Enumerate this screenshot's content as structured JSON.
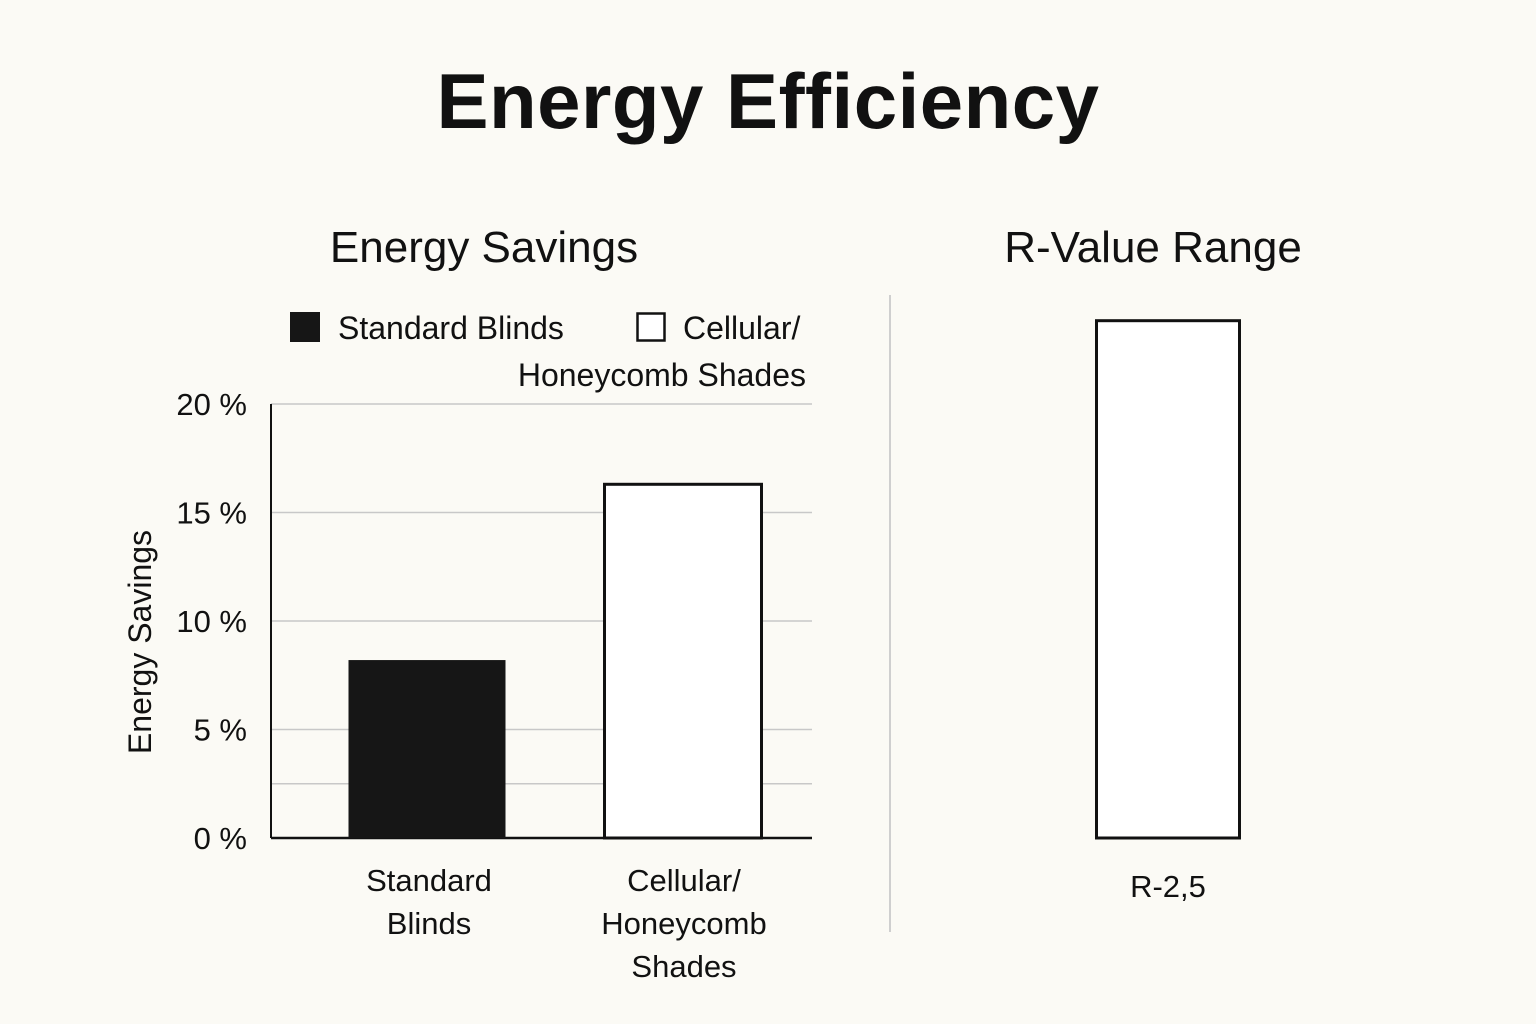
{
  "page": {
    "title": "Energy Efficiency"
  },
  "colors": {
    "background": "#fbfaf5",
    "ink": "#111111",
    "grid": "#c8c8c8",
    "divider": "#cfcfcf",
    "standard_fill": "#161616",
    "cellular_fill": "#ffffff"
  },
  "chart_data": [
    {
      "type": "bar",
      "title": "Energy Savings",
      "ylabel": "Energy Savings",
      "xlabel": "",
      "ylim": [
        0,
        20
      ],
      "yticks": [
        {
          "value": 0,
          "label": "0 %"
        },
        {
          "value": 5,
          "label": "5 %"
        },
        {
          "value": 10,
          "label": "10 %"
        },
        {
          "value": 15,
          "label": "15 %"
        },
        {
          "value": 20,
          "label": "20 %"
        }
      ],
      "gridlines": [
        5,
        10,
        15,
        20,
        2.5
      ],
      "grid": true,
      "legend_position": "top",
      "legend": [
        {
          "lines": [
            "Standard Blinds"
          ],
          "swatch": "filled"
        },
        {
          "lines": [
            "Cellular/",
            "Honeycomb Shades"
          ],
          "swatch": "outline"
        }
      ],
      "categories": [
        {
          "lines": [
            "Standard",
            "Blinds"
          ]
        },
        {
          "lines": [
            "Cellular/",
            "Honeycomb",
            "Shades"
          ]
        }
      ],
      "values": [
        8.2,
        16.3
      ]
    },
    {
      "type": "bar",
      "title": "R-Value Range",
      "ylabel": "",
      "xlabel": "",
      "grid": false,
      "categories": [
        {
          "lines": [
            "R-2,5"
          ]
        }
      ],
      "values": [
        2.5
      ],
      "ylim": [
        0,
        2.6
      ]
    }
  ]
}
